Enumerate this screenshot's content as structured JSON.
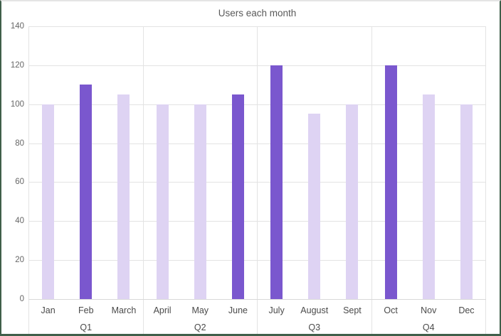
{
  "chart_data": {
    "type": "bar",
    "title": "Users each month",
    "categories": [
      "Jan",
      "Feb",
      "March",
      "April",
      "May",
      "June",
      "July",
      "August",
      "Sept",
      "Oct",
      "Nov",
      "Dec"
    ],
    "values": [
      100,
      110,
      105,
      100,
      100,
      105,
      120,
      95,
      100,
      120,
      105,
      100
    ],
    "highlighted_categories": [
      "Feb",
      "June",
      "July",
      "Oct"
    ],
    "groups": [
      {
        "label": "Q1",
        "months": [
          {
            "label": "Jan",
            "value": 100,
            "highlight": false
          },
          {
            "label": "Feb",
            "value": 110,
            "highlight": true
          },
          {
            "label": "March",
            "value": 105,
            "highlight": false
          }
        ]
      },
      {
        "label": "Q2",
        "months": [
          {
            "label": "April",
            "value": 100,
            "highlight": false
          },
          {
            "label": "May",
            "value": 100,
            "highlight": false
          },
          {
            "label": "June",
            "value": 105,
            "highlight": true
          }
        ]
      },
      {
        "label": "Q3",
        "months": [
          {
            "label": "July",
            "value": 120,
            "highlight": true
          },
          {
            "label": "August",
            "value": 95,
            "highlight": false
          },
          {
            "label": "Sept",
            "value": 100,
            "highlight": false
          }
        ]
      },
      {
        "label": "Q4",
        "months": [
          {
            "label": "Oct",
            "value": 120,
            "highlight": true
          },
          {
            "label": "Nov",
            "value": 105,
            "highlight": false
          },
          {
            "label": "Dec",
            "value": 100,
            "highlight": false
          }
        ]
      }
    ],
    "xlabel": "",
    "ylabel": "",
    "ylim": [
      0,
      140
    ],
    "yticks": [
      0,
      20,
      40,
      60,
      80,
      100,
      120,
      140
    ],
    "grid": "horizontal",
    "legend": "none",
    "colors": {
      "bar_highlight": "#7a57ce",
      "bar_normal": "#ded3f3",
      "gridline": "#e3e3e3",
      "axis_line": "#d9d9d9",
      "frame": "#3f5f4a",
      "frame_top": "#e4e4e4",
      "title_text": "#595959",
      "tick_text": "#666666",
      "label_text": "#4a4a4a"
    }
  }
}
